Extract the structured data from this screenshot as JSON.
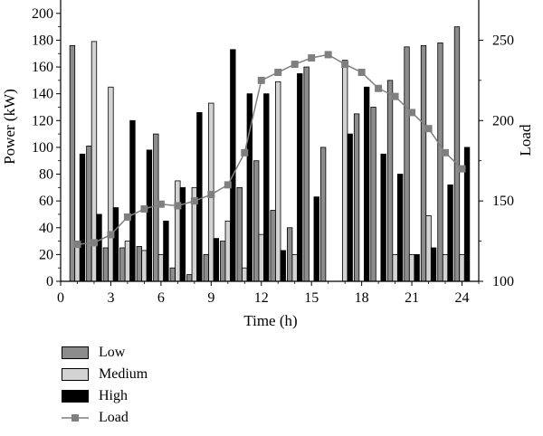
{
  "chart_data": {
    "type": "bar",
    "xlabel": "Time (h)",
    "ylabel": "Power (kW)",
    "y2label": "Load",
    "xlim": [
      0,
      25
    ],
    "ylim": [
      0,
      210
    ],
    "y2lim": [
      100,
      275
    ],
    "xticks": [
      0,
      3,
      6,
      9,
      12,
      15,
      18,
      21,
      24
    ],
    "yticks": [
      0,
      20,
      40,
      60,
      80,
      100,
      120,
      140,
      160,
      180,
      200
    ],
    "y2ticks": [
      100,
      150,
      200,
      250
    ],
    "hours": [
      1,
      2,
      3,
      4,
      5,
      6,
      7,
      8,
      9,
      10,
      11,
      12,
      13,
      14,
      15,
      16,
      17,
      18,
      19,
      20,
      21,
      22,
      23,
      24
    ],
    "series": [
      {
        "name": "Low",
        "type": "bar",
        "color": "#8c8c8c",
        "values": [
          176,
          101,
          25,
          25,
          26,
          110,
          10,
          5,
          20,
          30,
          70,
          90,
          53,
          40,
          160,
          100,
          0,
          125,
          130,
          150,
          175,
          176,
          178,
          190
        ]
      },
      {
        "name": "Medium",
        "type": "bar",
        "color": "#d3d3d3",
        "values": [
          30,
          179,
          145,
          30,
          23,
          20,
          75,
          70,
          133,
          45,
          10,
          35,
          149,
          20,
          0,
          0,
          165,
          0,
          0,
          20,
          20,
          49,
          20,
          20
        ]
      },
      {
        "name": "High",
        "type": "bar",
        "color": "#000000",
        "values": [
          95,
          50,
          55,
          120,
          98,
          45,
          70,
          126,
          32,
          173,
          140,
          140,
          23,
          155,
          63,
          0,
          110,
          145,
          95,
          80,
          20,
          25,
          72,
          100
        ]
      },
      {
        "name": "Load",
        "type": "line",
        "axis": "right",
        "color": "#7f7f7f",
        "values": [
          123,
          124,
          129,
          140,
          145,
          148,
          147,
          150,
          154,
          160,
          180,
          225,
          230,
          235,
          239,
          241,
          235,
          230,
          220,
          215,
          205,
          195,
          180,
          170
        ]
      }
    ],
    "legend": [
      "Low",
      "Medium",
      "High",
      "Load"
    ],
    "legend_position": "below",
    "grid": false
  }
}
